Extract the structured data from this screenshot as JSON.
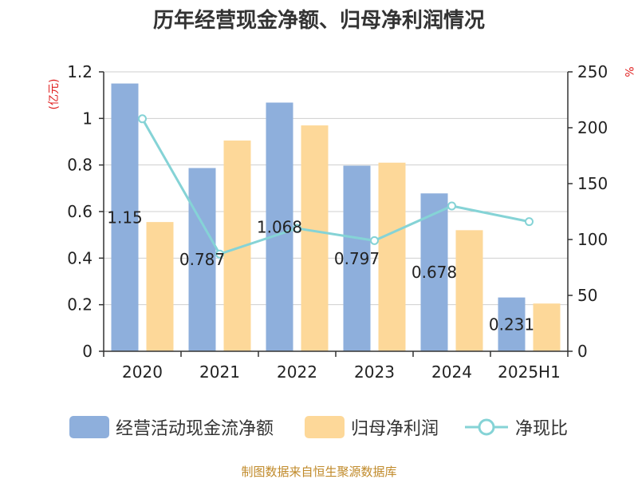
{
  "title": "历年经营现金净额、归母净利润情况",
  "source": "制图数据来自恒生聚源数据库",
  "colors": {
    "cash_bar": "#8eafdc",
    "profit_bar": "#fdd899",
    "ratio_line": "#85d3d6",
    "unit_red": "#e02020",
    "axis": "#333333",
    "grid": "#cfcfcf",
    "source": "#c08a2a"
  },
  "chart_data": {
    "type": "bar",
    "categories": [
      "2020",
      "2021",
      "2022",
      "2023",
      "2024",
      "2025H1"
    ],
    "series": [
      {
        "name": "经营活动现金流净额",
        "type": "bar",
        "axis": "left",
        "values": [
          1.15,
          0.787,
          1.068,
          0.797,
          0.678,
          0.231
        ],
        "labels": [
          "1.15",
          "0.787",
          "1.068",
          "0.797",
          "0.678",
          "0.231"
        ]
      },
      {
        "name": "归母净利润",
        "type": "bar",
        "axis": "left",
        "values": [
          0.555,
          0.905,
          0.97,
          0.81,
          0.52,
          0.205
        ]
      },
      {
        "name": "净现比",
        "type": "line",
        "axis": "right",
        "values": [
          208,
          87,
          110,
          99,
          130,
          116
        ]
      }
    ],
    "left_axis": {
      "unit": "(亿元)",
      "min": 0,
      "max": 1.2,
      "ticks": [
        0,
        0.2,
        0.4,
        0.6,
        0.8,
        1,
        1.2
      ],
      "tick_labels": [
        "0",
        "0.2",
        "0.4",
        "0.6",
        "0.8",
        "1",
        "1.2"
      ]
    },
    "right_axis": {
      "unit": "%",
      "min": 0,
      "max": 250,
      "ticks": [
        0,
        50,
        100,
        150,
        200,
        250
      ],
      "tick_labels": [
        "0",
        "50",
        "100",
        "150",
        "200",
        "250"
      ]
    },
    "grid": true,
    "legend_position": "bottom"
  }
}
